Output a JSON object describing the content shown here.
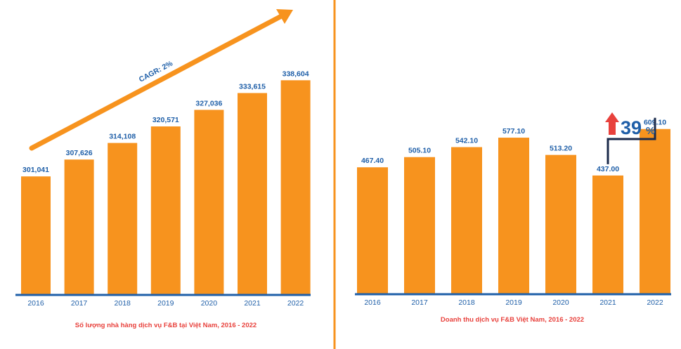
{
  "colors": {
    "bar": "#F7931E",
    "axis": "#1F5FA8",
    "label_blue": "#1F5FA8",
    "caption_red": "#E8413C",
    "divider": "#F7931E",
    "bracket_navy": "#1B2A4A",
    "up_arrow": "#E8413C",
    "percent_blue": "#1F5FA8"
  },
  "chart_data": [
    {
      "type": "bar",
      "title": "Số lượng nhà hàng dịch vụ F&B tại Việt Nam, 2016 - 2022",
      "categories": [
        "2016",
        "2017",
        "2018",
        "2019",
        "2020",
        "2021",
        "2022"
      ],
      "values": [
        301041,
        307626,
        314108,
        320571,
        327036,
        333615,
        338604
      ],
      "value_labels": [
        "301,041",
        "307,626",
        "314,108",
        "320,571",
        "327,036",
        "333,615",
        "338,604"
      ],
      "ylim": [
        255000,
        345000
      ],
      "annotations": [
        {
          "type": "trend-arrow",
          "text": "CAGR: 2%"
        }
      ],
      "xlabel": "",
      "ylabel": ""
    },
    {
      "type": "bar",
      "title": "Doanh thu dịch vụ F&B Việt Nam, 2016 - 2022",
      "categories": [
        "2016",
        "2017",
        "2018",
        "2019",
        "2020",
        "2021",
        "2022"
      ],
      "values": [
        467.4,
        505.1,
        542.1,
        577.1,
        513.2,
        437.0,
        609.1
      ],
      "value_labels": [
        "467.40",
        "505.10",
        "542.10",
        "577.10",
        "513.20",
        "437.00",
        "609.10"
      ],
      "ylim": [
        0,
        1040
      ],
      "annotations": [
        {
          "type": "growth-bracket",
          "from": "2021",
          "to": "2022",
          "text": "39",
          "suffix": "%",
          "direction": "up"
        }
      ],
      "xlabel": "",
      "ylabel": ""
    }
  ]
}
